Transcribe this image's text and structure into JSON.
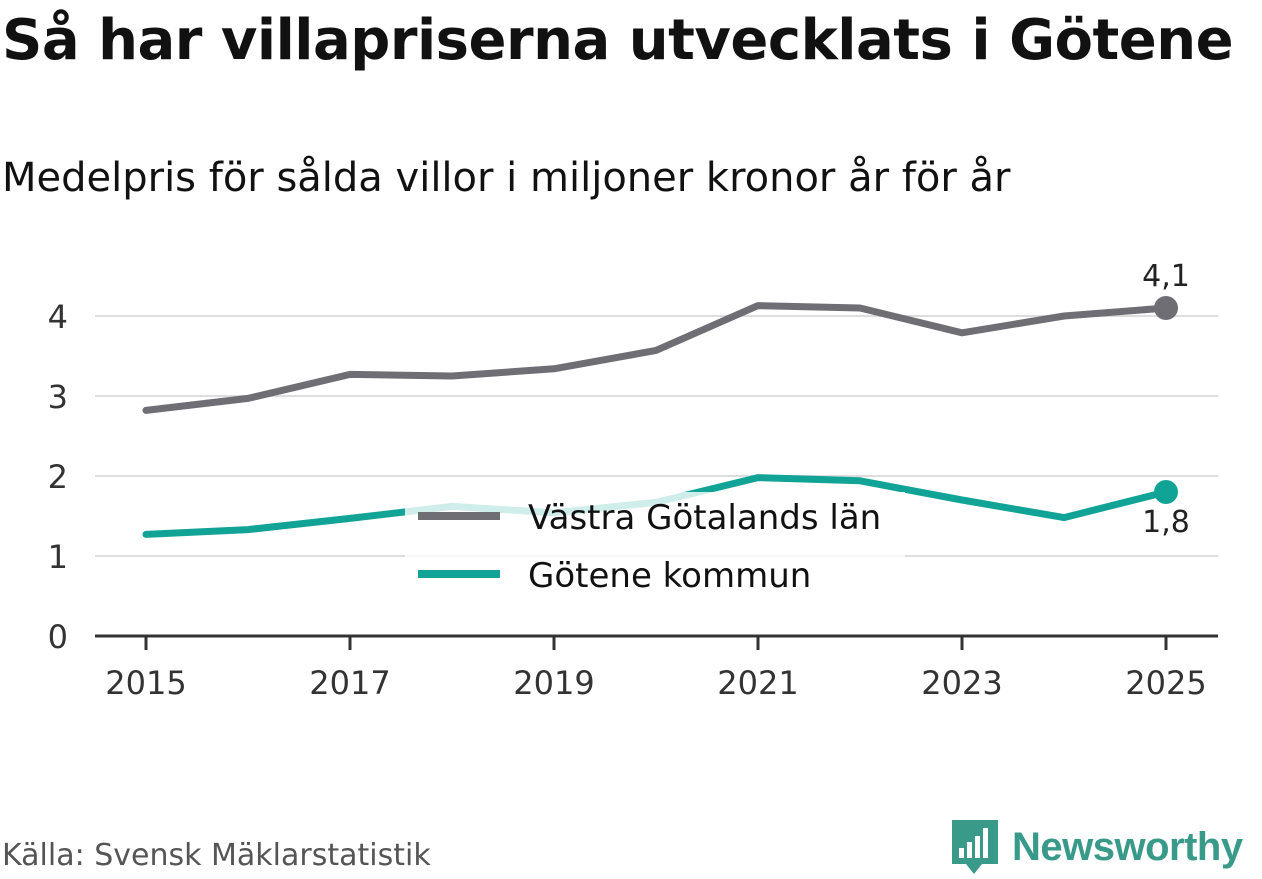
{
  "header": {
    "title": "Så har villapriserna utvecklats i Götene",
    "subtitle": "Medelpris för sålda villor i miljoner kronor år för år"
  },
  "footer": {
    "source": "Källa: Svensk Mäklarstatistik",
    "brand": "Newsworthy"
  },
  "colors": {
    "vastra": "#6f6e75",
    "gotene": "#12a397",
    "grid": "#dddddd",
    "axis": "#333333",
    "brand": "#3a9a8a"
  },
  "chart_data": {
    "type": "line",
    "title": "Så har villapriserna utvecklats i Götene",
    "subtitle": "Medelpris för sålda villor i miljoner kronor år för år",
    "xlabel": "",
    "ylabel": "",
    "x": [
      2015,
      2016,
      2017,
      2018,
      2019,
      2020,
      2021,
      2022,
      2023,
      2024,
      2025
    ],
    "x_ticks": [
      "2015",
      "2017",
      "2019",
      "2021",
      "2023",
      "2025"
    ],
    "y_ticks": [
      "0",
      "1",
      "2",
      "3",
      "4"
    ],
    "ylim": [
      0,
      4.6
    ],
    "grid": true,
    "legend_position": "bottom-center",
    "series": [
      {
        "name": "Västra Götalands län",
        "color": "#6f6e75",
        "values": [
          2.82,
          2.97,
          3.27,
          3.25,
          3.34,
          3.57,
          4.13,
          4.1,
          3.79,
          4.0,
          4.1
        ],
        "end_label": "4,1"
      },
      {
        "name": "Götene kommun",
        "color": "#12a397",
        "values": [
          1.27,
          1.33,
          1.47,
          1.62,
          1.54,
          1.67,
          1.98,
          1.94,
          1.7,
          1.48,
          1.8
        ],
        "end_label": "1,8"
      }
    ]
  }
}
